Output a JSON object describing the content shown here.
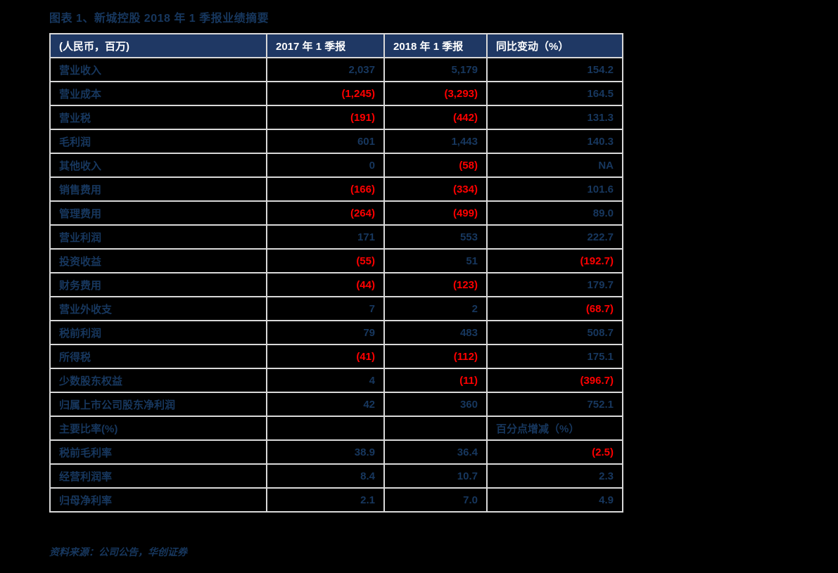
{
  "title": "图表 1、新城控股 2018 年 1 季报业绩摘要",
  "source_note": "资料来源：公司公告，华创证券",
  "colors": {
    "page_bg": "#000000",
    "header_bg": "#1F3864",
    "header_text": "#FFFFFF",
    "text_navy": "#17375E",
    "negative_red": "#FF0000",
    "grid": "#D9D9D9",
    "cell_bg": "#000000"
  },
  "table": {
    "columns": [
      {
        "label": "(人民币，百万)"
      },
      {
        "label": "2017 年 1 季报"
      },
      {
        "label": "2018 年 1 季报"
      },
      {
        "label": "同比变动（%）"
      }
    ],
    "rows": [
      {
        "cells": [
          "营业收入",
          "2,037",
          "5,179",
          "154.2"
        ]
      },
      {
        "cells": [
          "营业成本",
          "(1,245)",
          "(3,293)",
          "164.5"
        ]
      },
      {
        "cells": [
          "营业税",
          "(191)",
          "(442)",
          "131.3"
        ]
      },
      {
        "cells": [
          "毛利润",
          "601",
          "1,443",
          "140.3"
        ]
      },
      {
        "cells": [
          "其他收入",
          "0",
          "(58)",
          "NA"
        ]
      },
      {
        "cells": [
          "销售费用",
          "(166)",
          "(334)",
          "101.6"
        ]
      },
      {
        "cells": [
          "管理费用",
          "(264)",
          "(499)",
          "89.0"
        ]
      },
      {
        "cells": [
          "营业利润",
          "171",
          "553",
          "222.7"
        ]
      },
      {
        "cells": [
          "投资收益",
          "(55)",
          "51",
          "(192.7)"
        ]
      },
      {
        "cells": [
          "财务费用",
          "(44)",
          "(123)",
          "179.7"
        ]
      },
      {
        "cells": [
          "营业外收支",
          "7",
          "2",
          "(68.7)"
        ]
      },
      {
        "cells": [
          "税前利润",
          "79",
          "483",
          "508.7"
        ]
      },
      {
        "cells": [
          "所得税",
          "(41)",
          "(112)",
          "175.1"
        ]
      },
      {
        "cells": [
          "少数股东权益",
          "4",
          "(11)",
          "(396.7)"
        ]
      },
      {
        "cells": [
          "归属上市公司股东净利润",
          "42",
          "360",
          "752.1"
        ]
      },
      {
        "cells": [
          "主要比率(%)",
          "",
          "",
          "百分点增减（%）"
        ],
        "section": true
      },
      {
        "cells": [
          "税前毛利率",
          "38.9",
          "36.4",
          "(2.5)"
        ]
      },
      {
        "cells": [
          "经营利润率",
          "8.4",
          "10.7",
          "2.3"
        ]
      },
      {
        "cells": [
          "归母净利率",
          "2.1",
          "7.0",
          "4.9"
        ]
      }
    ]
  }
}
